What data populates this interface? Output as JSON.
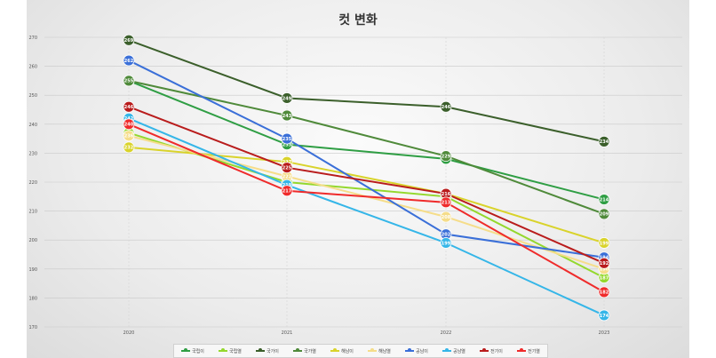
{
  "chart_data": {
    "type": "line",
    "title": "컷 변화",
    "x": [
      "2020",
      "2021",
      "2022",
      "2023"
    ],
    "ylim": [
      170,
      270
    ],
    "yticks": [
      170,
      180,
      190,
      200,
      210,
      220,
      230,
      240,
      250,
      260,
      270
    ],
    "grid": true,
    "legend": "bottom",
    "series": [
      {
        "name": "국립이",
        "color": "#2f9e44",
        "values": [
          255,
          233,
          228,
          214
        ]
      },
      {
        "name": "국립열",
        "color": "#94d82d",
        "values": [
          237,
          220,
          215,
          187
        ]
      },
      {
        "name": "국가이",
        "color": "#3b5f2b",
        "values": [
          269,
          249,
          246,
          234
        ]
      },
      {
        "name": "국가열",
        "color": "#4f8a3a",
        "values": [
          255,
          243,
          229,
          209
        ]
      },
      {
        "name": "해남이",
        "color": "#d9d32b",
        "values": [
          232,
          227,
          216,
          199
        ]
      },
      {
        "name": "해남열",
        "color": "#f5dd8a",
        "values": [
          236,
          222,
          208,
          190
        ]
      },
      {
        "name": "공남이",
        "color": "#3a6fd8",
        "values": [
          262,
          235,
          202,
          194
        ]
      },
      {
        "name": "공남열",
        "color": "#35b6e8",
        "values": [
          242,
          219,
          199,
          174
        ]
      },
      {
        "name": "전기이",
        "color": "#b91c1c",
        "values": [
          246,
          225,
          216,
          192
        ]
      },
      {
        "name": "전기열",
        "color": "#ef2b2b",
        "values": [
          240,
          217,
          213,
          182
        ]
      }
    ]
  }
}
